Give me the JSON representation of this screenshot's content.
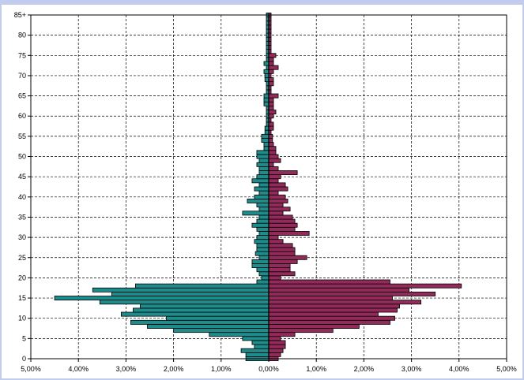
{
  "chart_data": {
    "type": "bar",
    "orientation": "horizontal",
    "layout": "population-pyramid",
    "grid": true,
    "gridStyle": "dashed",
    "xlim": [
      -5,
      5
    ],
    "x_ticks": [
      -5,
      -4,
      -3,
      -2,
      -1,
      0,
      1,
      2,
      3,
      4,
      5
    ],
    "x_tick_labels": [
      "5,00%",
      "4,00%",
      "3,00%",
      "2,00%",
      "1,00%",
      "0,00%",
      "1,00%",
      "2,00%",
      "3,00%",
      "4,00%",
      "5,00%"
    ],
    "y_ticks": [
      0,
      5,
      10,
      15,
      20,
      25,
      30,
      35,
      40,
      45,
      50,
      55,
      60,
      65,
      70,
      75,
      80,
      85
    ],
    "y_tick_labels": [
      "0",
      "5",
      "10",
      "15",
      "20",
      "25",
      "30",
      "35",
      "40",
      "45",
      "50",
      "55",
      "60",
      "65",
      "70",
      "75",
      "80",
      "85+"
    ],
    "categories": [
      0,
      1,
      2,
      3,
      4,
      5,
      6,
      7,
      8,
      9,
      10,
      11,
      12,
      13,
      14,
      15,
      16,
      17,
      18,
      19,
      20,
      21,
      22,
      23,
      24,
      25,
      26,
      27,
      28,
      29,
      30,
      31,
      32,
      33,
      34,
      35,
      36,
      37,
      38,
      39,
      40,
      41,
      42,
      43,
      44,
      45,
      46,
      47,
      48,
      49,
      50,
      51,
      52,
      53,
      54,
      55,
      56,
      57,
      58,
      59,
      60,
      61,
      62,
      63,
      64,
      65,
      66,
      67,
      68,
      69,
      70,
      71,
      72,
      73,
      74,
      75,
      76,
      77,
      78,
      79,
      80,
      81,
      82,
      83,
      84,
      85
    ],
    "series": [
      {
        "side": "left",
        "color": "#1f8c8c",
        "values": [
          0.48,
          0.48,
          0.58,
          0.3,
          0.35,
          0.55,
          1.25,
          2.0,
          2.55,
          2.9,
          2.15,
          3.1,
          2.85,
          2.7,
          3.55,
          4.5,
          3.3,
          3.7,
          2.8,
          0.25,
          0.15,
          0.2,
          0.25,
          0.35,
          0.35,
          0.2,
          0.28,
          0.25,
          0.25,
          0.3,
          0.25,
          0.2,
          0.25,
          0.35,
          0.25,
          0.2,
          0.55,
          0.2,
          0.25,
          0.45,
          0.3,
          0.2,
          0.3,
          0.2,
          0.35,
          0.25,
          0.2,
          0.2,
          0.25,
          0.2,
          0.25,
          0.25,
          0.1,
          0.1,
          0.15,
          0.15,
          0.08,
          0.08,
          0.05,
          0.05,
          0.05,
          0.05,
          0.05,
          0.1,
          0.1,
          0.1,
          0.05,
          0.05,
          0.05,
          0.08,
          0.08,
          0.1,
          0.05,
          0.1,
          0.05,
          0.05,
          0.05,
          0.05,
          0.05,
          0.05,
          0.05,
          0.05,
          0.05,
          0.05,
          0.05,
          0.05
        ]
      },
      {
        "side": "right",
        "color": "#922b5a",
        "values": [
          0.2,
          0.25,
          0.3,
          0.35,
          0.35,
          0.25,
          0.55,
          1.35,
          1.9,
          2.55,
          2.65,
          2.3,
          2.7,
          2.75,
          3.2,
          2.6,
          3.5,
          2.95,
          4.05,
          2.55,
          0.25,
          0.55,
          0.45,
          0.45,
          0.6,
          0.8,
          0.55,
          0.55,
          0.5,
          0.3,
          0.2,
          0.85,
          0.55,
          0.6,
          0.55,
          0.5,
          0.3,
          0.45,
          0.3,
          0.4,
          0.35,
          0.2,
          0.4,
          0.35,
          0.2,
          0.25,
          0.6,
          0.2,
          0.1,
          0.25,
          0.2,
          0.15,
          0.15,
          0.1,
          0.08,
          0.08,
          0.05,
          0.1,
          0.1,
          0.05,
          0.1,
          0.15,
          0.1,
          0.1,
          0.1,
          0.2,
          0.05,
          0.05,
          0.1,
          0.1,
          0.05,
          0.1,
          0.2,
          0.1,
          0.1,
          0.15,
          0.05,
          0.05,
          0.05,
          0.05,
          0.05,
          0.05,
          0.05,
          0.05,
          0.05,
          0.05
        ]
      }
    ]
  }
}
